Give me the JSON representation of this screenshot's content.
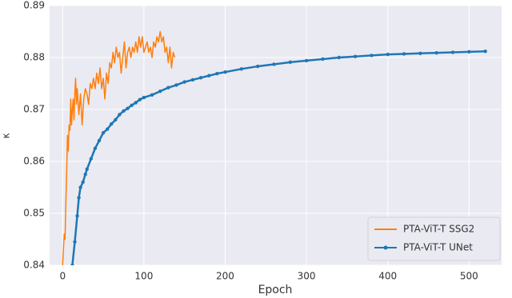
{
  "chart_data": {
    "type": "line",
    "xlabel": "Epoch",
    "ylabel": "κ",
    "xlim": [
      -16,
      540
    ],
    "ylim": [
      0.84,
      0.89
    ],
    "xticks": [
      0,
      100,
      200,
      300,
      400,
      500
    ],
    "yticks": [
      0.84,
      0.85,
      0.86,
      0.87,
      0.88,
      0.89
    ],
    "grid": true,
    "legend": "lower right",
    "series": [
      {
        "name": "PTA-ViT-T SSG2",
        "color": "#ff7f0e",
        "marker": "none",
        "x": [
          0,
          2,
          3,
          4,
          5,
          6,
          7,
          8,
          9,
          10,
          11,
          12,
          13,
          14,
          15,
          16,
          17,
          18,
          20,
          22,
          24,
          26,
          28,
          30,
          32,
          34,
          36,
          38,
          40,
          42,
          44,
          46,
          48,
          50,
          52,
          54,
          56,
          58,
          60,
          62,
          64,
          66,
          68,
          70,
          72,
          74,
          76,
          78,
          80,
          82,
          84,
          86,
          88,
          90,
          92,
          94,
          96,
          98,
          100,
          102,
          104,
          106,
          108,
          110,
          112,
          114,
          116,
          118,
          120,
          122,
          124,
          126,
          128,
          130,
          132,
          134,
          136,
          138
        ],
        "values": [
          0.84,
          0.846,
          0.845,
          0.852,
          0.858,
          0.865,
          0.862,
          0.867,
          0.866,
          0.872,
          0.867,
          0.87,
          0.872,
          0.868,
          0.873,
          0.876,
          0.871,
          0.874,
          0.869,
          0.873,
          0.867,
          0.872,
          0.874,
          0.873,
          0.871,
          0.875,
          0.874,
          0.876,
          0.874,
          0.877,
          0.875,
          0.878,
          0.874,
          0.876,
          0.872,
          0.877,
          0.875,
          0.879,
          0.878,
          0.881,
          0.879,
          0.882,
          0.88,
          0.881,
          0.877,
          0.88,
          0.883,
          0.878,
          0.881,
          0.882,
          0.88,
          0.882,
          0.881,
          0.883,
          0.881,
          0.884,
          0.882,
          0.884,
          0.881,
          0.882,
          0.883,
          0.881,
          0.882,
          0.88,
          0.883,
          0.882,
          0.884,
          0.883,
          0.885,
          0.883,
          0.884,
          0.881,
          0.882,
          0.879,
          0.882,
          0.878,
          0.881,
          0.88
        ]
      },
      {
        "name": "PTA-ViT-T UNet",
        "color": "#1f77b4",
        "marker": "o",
        "x": [
          12,
          15,
          18,
          20,
          22,
          25,
          28,
          30,
          35,
          40,
          45,
          50,
          55,
          60,
          65,
          70,
          75,
          80,
          85,
          90,
          95,
          100,
          110,
          120,
          130,
          140,
          150,
          160,
          170,
          180,
          190,
          200,
          220,
          240,
          260,
          280,
          300,
          320,
          340,
          360,
          380,
          400,
          420,
          440,
          460,
          480,
          500,
          520
        ],
        "values": [
          0.84,
          0.8445,
          0.8495,
          0.853,
          0.855,
          0.856,
          0.8575,
          0.8585,
          0.8605,
          0.8625,
          0.864,
          0.8655,
          0.8662,
          0.8672,
          0.868,
          0.869,
          0.8697,
          0.8702,
          0.8708,
          0.8713,
          0.8719,
          0.8723,
          0.8728,
          0.8735,
          0.8742,
          0.8747,
          0.8753,
          0.8757,
          0.8761,
          0.8765,
          0.8769,
          0.8772,
          0.8778,
          0.8783,
          0.8787,
          0.8791,
          0.8794,
          0.8797,
          0.88,
          0.8802,
          0.8804,
          0.8806,
          0.8807,
          0.8808,
          0.8809,
          0.881,
          0.8811,
          0.8812
        ]
      }
    ]
  }
}
